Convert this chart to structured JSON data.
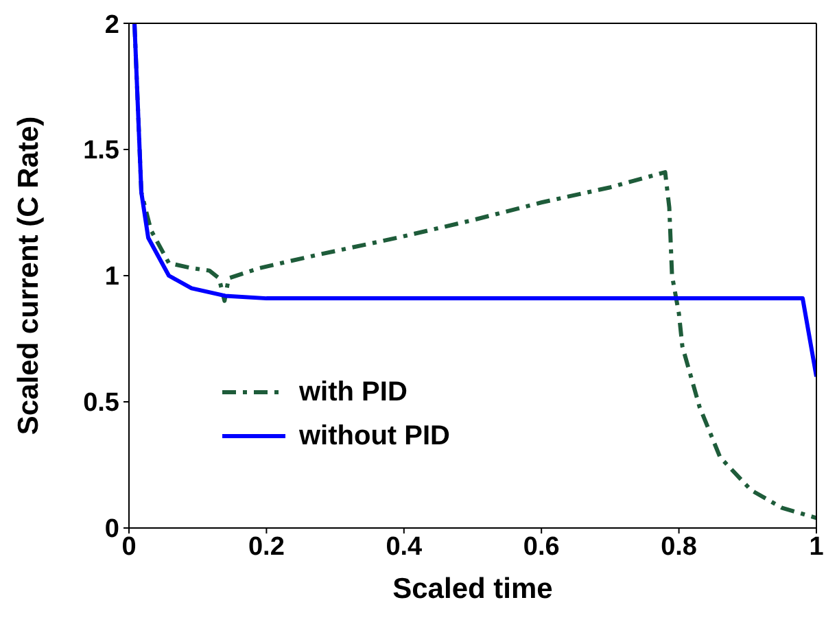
{
  "chart_data": {
    "type": "line",
    "xlabel": "Scaled time",
    "ylabel": "Scaled current (C Rate)",
    "xlim": [
      0,
      1
    ],
    "ylim": [
      0,
      2
    ],
    "xticks": [
      0,
      0.2,
      0.4,
      0.6,
      0.8,
      1
    ],
    "yticks": [
      0,
      0.5,
      1,
      1.5,
      2
    ],
    "grid": false,
    "legend": "bottom left",
    "marker": "none",
    "series": [
      {
        "name": "with PID",
        "color": "#1e5c3a",
        "line_style": "dashed",
        "x": [
          0.008,
          0.018,
          0.032,
          0.058,
          0.091,
          0.117,
          0.131,
          0.139,
          0.145,
          0.19,
          0.27,
          0.39,
          0.5,
          0.6,
          0.7,
          0.78,
          0.786,
          0.79,
          0.8,
          0.805,
          0.83,
          0.86,
          0.905,
          0.95,
          1.0
        ],
        "values": [
          2,
          1.33,
          1.18,
          1.05,
          1.03,
          1.02,
          0.99,
          0.9,
          0.99,
          1.03,
          1.08,
          1.15,
          1.22,
          1.29,
          1.35,
          1.41,
          1.27,
          1.0,
          0.85,
          0.72,
          0.48,
          0.28,
          0.15,
          0.08,
          0.04
        ]
      },
      {
        "name": "without PID",
        "color": "#0000ff",
        "line_style": "solid",
        "x": [
          0.008,
          0.018,
          0.028,
          0.058,
          0.091,
          0.14,
          0.2,
          0.5,
          0.98,
          1.0
        ],
        "values": [
          2,
          1.33,
          1.15,
          1.0,
          0.95,
          0.92,
          0.91,
          0.91,
          0.91,
          0.6
        ]
      }
    ]
  }
}
